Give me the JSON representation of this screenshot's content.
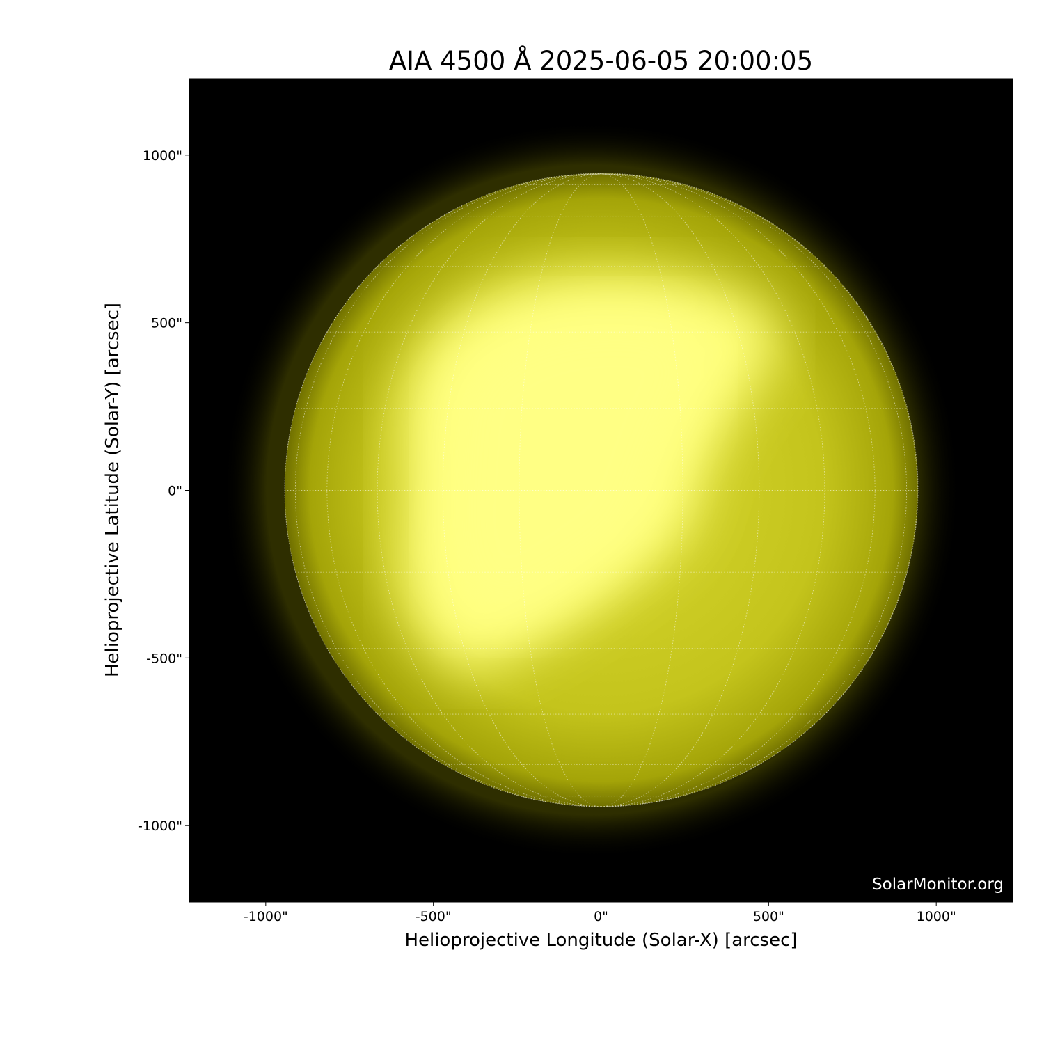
{
  "chart_data": {
    "type": "image",
    "title": "AIA 4500 Å 2025-06-05 20:00:05",
    "xlabel": "Helioprojective Longitude (Solar-X) [arcsec]",
    "ylabel": "Helioprojective Latitude (Solar-Y) [arcsec]",
    "xlim": [
      -1228,
      1228
    ],
    "ylim": [
      -1228,
      1228
    ],
    "xticks": [
      -1000,
      -500,
      0,
      500,
      1000
    ],
    "yticks": [
      -1000,
      -500,
      0,
      500,
      1000
    ],
    "xtick_labels": [
      "-1000\"",
      "-500\"",
      "0\"",
      "500\"",
      "1000\""
    ],
    "ytick_labels": [
      "-1000\"",
      "-500\"",
      "0\"",
      "500\"",
      "1000\""
    ],
    "solar_radius_arcsec": 944,
    "grid": "heliographic lat/lon every 15°, white dotted",
    "colormap": "sdoaia4500 (black to yellow)",
    "colors": {
      "background": "#000000",
      "disk_dark": "#8a8a00",
      "disk_mid": "#c8c820",
      "disk_bright": "#ffff80"
    },
    "watermark": "SolarMonitor.org"
  }
}
